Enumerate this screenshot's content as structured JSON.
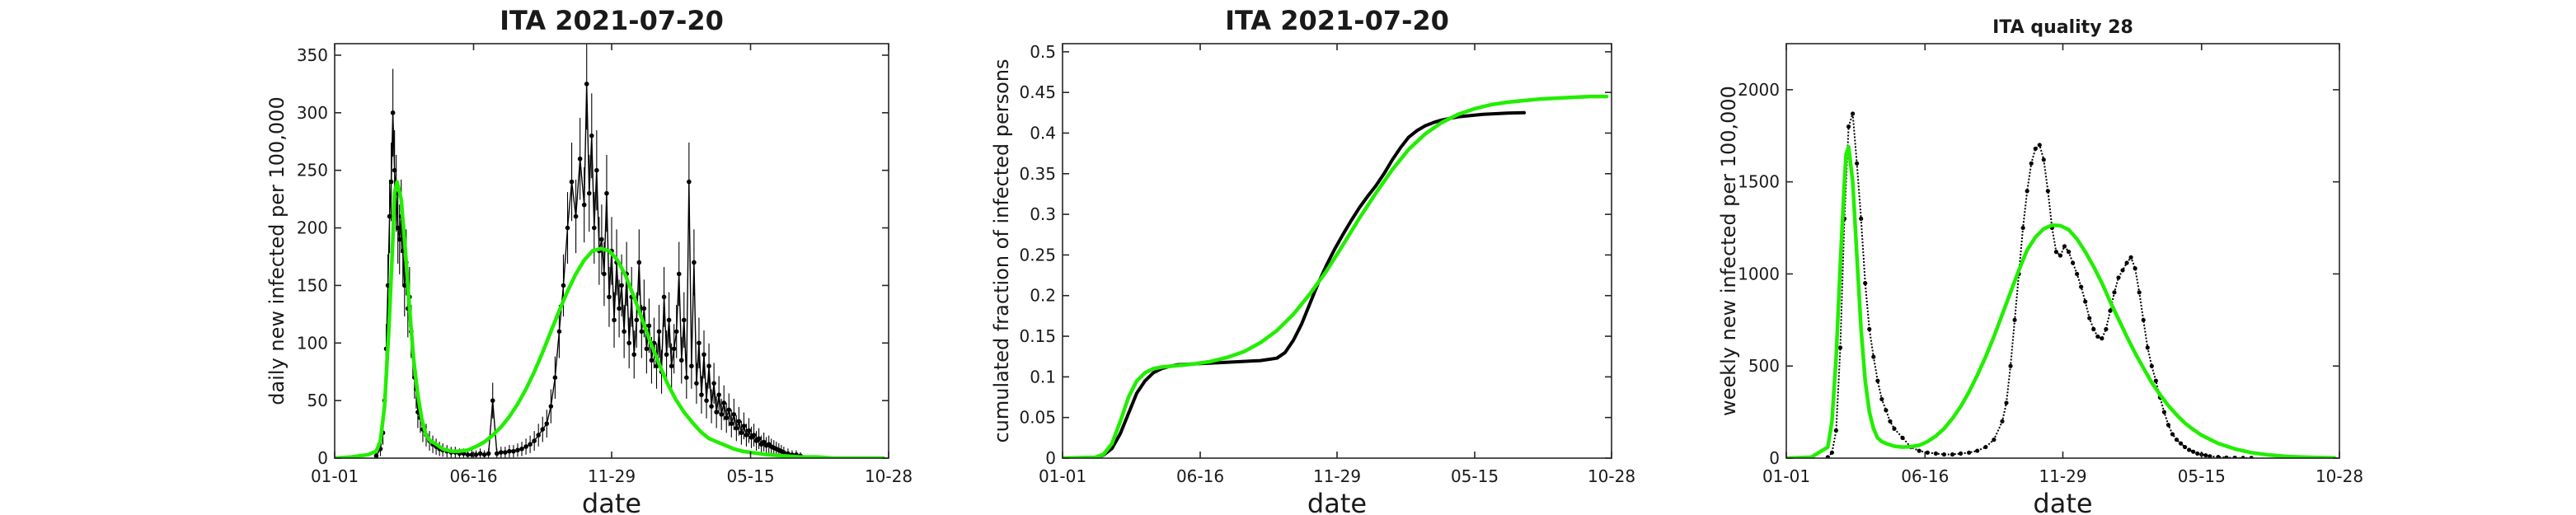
{
  "chart_data": [
    {
      "type": "line",
      "title": "ITA   2021-07-20",
      "xlabel": "date",
      "ylabel": "daily new infected per 100,000",
      "x_ticks": [
        "01-01",
        "06-16",
        "11-29",
        "05-15",
        "10-28"
      ],
      "x_tick_days": [
        0,
        167,
        333,
        500,
        666
      ],
      "ylim": [
        0,
        360
      ],
      "y_ticks": [
        0,
        50,
        100,
        150,
        200,
        250,
        300,
        350
      ],
      "grid": false,
      "series": [
        {
          "color": "#000000",
          "style": "markers+line with error bars",
          "x_days": [
            50,
            55,
            58,
            60,
            62,
            64,
            66,
            68,
            70,
            72,
            74,
            76,
            78,
            80,
            82,
            84,
            86,
            88,
            90,
            92,
            94,
            96,
            98,
            100,
            103,
            106,
            110,
            114,
            118,
            122,
            126,
            130,
            135,
            140,
            145,
            150,
            155,
            160,
            165,
            170,
            175,
            180,
            185,
            190,
            195,
            200,
            205,
            210,
            215,
            220,
            225,
            230,
            235,
            240,
            245,
            250,
            255,
            260,
            265,
            270,
            275,
            280,
            285,
            290,
            295,
            300,
            303,
            306,
            309,
            312,
            315,
            318,
            321,
            324,
            327,
            330,
            333,
            336,
            339,
            342,
            345,
            348,
            351,
            354,
            357,
            360,
            363,
            366,
            369,
            372,
            375,
            378,
            381,
            384,
            387,
            390,
            393,
            396,
            399,
            402,
            405,
            408,
            411,
            414,
            417,
            420,
            423,
            426,
            429,
            432,
            435,
            438,
            441,
            444,
            447,
            450,
            453,
            456,
            459,
            462,
            465,
            468,
            471,
            474,
            477,
            480,
            483,
            486,
            489,
            492,
            495,
            498,
            501,
            504,
            507,
            510,
            513,
            516,
            519,
            522,
            525,
            528,
            531,
            534,
            537,
            540,
            545,
            550,
            555,
            560
          ],
          "y": [
            2,
            8,
            22,
            50,
            95,
            150,
            210,
            240,
            300,
            250,
            230,
            200,
            190,
            210,
            180,
            150,
            170,
            130,
            140,
            110,
            90,
            70,
            60,
            40,
            35,
            25,
            20,
            15,
            12,
            10,
            8,
            7,
            6,
            5,
            5,
            4,
            4,
            3,
            3,
            3,
            4,
            3,
            4,
            50,
            4,
            5,
            5,
            6,
            6,
            7,
            8,
            10,
            12,
            15,
            20,
            25,
            30,
            45,
            70,
            110,
            150,
            200,
            240,
            210,
            260,
            220,
            325,
            230,
            280,
            200,
            250,
            180,
            190,
            160,
            230,
            140,
            180,
            120,
            170,
            130,
            150,
            110,
            160,
            100,
            140,
            90,
            120,
            170,
            110,
            130,
            95,
            115,
            85,
            100,
            80,
            110,
            75,
            140,
            90,
            120,
            80,
            95,
            110,
            160,
            85,
            120,
            70,
            240,
            80,
            170,
            65,
            100,
            55,
            90,
            50,
            80,
            45,
            65,
            40,
            55,
            38,
            48,
            35,
            42,
            30,
            38,
            26,
            32,
            22,
            28,
            20,
            24,
            18,
            20,
            15,
            17,
            12,
            14,
            11,
            12,
            10,
            9,
            8,
            7,
            6,
            5,
            4,
            3,
            3,
            2
          ]
        },
        {
          "color": "#22ee00",
          "style": "line",
          "x_days": [
            0,
            20,
            40,
            50,
            55,
            60,
            65,
            70,
            72,
            75,
            80,
            85,
            90,
            95,
            100,
            105,
            110,
            115,
            120,
            130,
            140,
            150,
            160,
            170,
            180,
            190,
            200,
            210,
            220,
            230,
            240,
            250,
            260,
            270,
            280,
            290,
            300,
            310,
            320,
            330,
            340,
            350,
            360,
            370,
            380,
            390,
            400,
            410,
            420,
            430,
            440,
            450,
            460,
            470,
            480,
            490,
            500,
            520,
            540,
            560,
            580,
            600,
            620,
            640,
            660
          ],
          "y": [
            0,
            1,
            3,
            6,
            15,
            45,
            110,
            190,
            230,
            240,
            225,
            180,
            130,
            85,
            55,
            33,
            20,
            15,
            13,
            8,
            6,
            6,
            7,
            10,
            14,
            20,
            27,
            36,
            47,
            60,
            75,
            92,
            110,
            128,
            145,
            160,
            172,
            180,
            182,
            180,
            172,
            158,
            140,
            120,
            100,
            82,
            65,
            51,
            40,
            31,
            23,
            17,
            14,
            11,
            8,
            6,
            5,
            3,
            2,
            1,
            1,
            0,
            0,
            0,
            0
          ]
        }
      ]
    },
    {
      "type": "line",
      "title": "ITA   2021-07-20",
      "xlabel": "date",
      "ylabel": "cumulated fraction of infected persons",
      "x_ticks": [
        "01-01",
        "06-16",
        "11-29",
        "05-15",
        "10-28"
      ],
      "x_tick_days": [
        0,
        167,
        333,
        500,
        666
      ],
      "ylim": [
        0,
        0.51
      ],
      "y_ticks": [
        0,
        0.05,
        0.1,
        0.15,
        0.2,
        0.25,
        0.3,
        0.35,
        0.4,
        0.45,
        0.5
      ],
      "grid": false,
      "series": [
        {
          "color": "#000000",
          "style": "line",
          "x_days": [
            0,
            40,
            50,
            60,
            70,
            80,
            90,
            100,
            110,
            120,
            130,
            140,
            160,
            180,
            200,
            220,
            240,
            260,
            270,
            280,
            290,
            300,
            310,
            320,
            330,
            340,
            350,
            360,
            370,
            380,
            390,
            400,
            410,
            420,
            430,
            440,
            450,
            460,
            470,
            480,
            490,
            500,
            510,
            520,
            530,
            540,
            550,
            560
          ],
          "y": [
            0,
            0.001,
            0.004,
            0.012,
            0.03,
            0.055,
            0.08,
            0.095,
            0.105,
            0.11,
            0.113,
            0.115,
            0.116,
            0.117,
            0.118,
            0.119,
            0.12,
            0.123,
            0.13,
            0.145,
            0.165,
            0.19,
            0.215,
            0.237,
            0.257,
            0.275,
            0.292,
            0.308,
            0.322,
            0.335,
            0.35,
            0.367,
            0.382,
            0.395,
            0.403,
            0.409,
            0.413,
            0.416,
            0.418,
            0.42,
            0.421,
            0.422,
            0.423,
            0.4235,
            0.424,
            0.4245,
            0.4248,
            0.425
          ]
        },
        {
          "color": "#22ee00",
          "style": "line",
          "x_days": [
            0,
            40,
            50,
            60,
            70,
            80,
            90,
            100,
            110,
            120,
            140,
            160,
            180,
            200,
            220,
            240,
            260,
            280,
            300,
            320,
            340,
            360,
            380,
            400,
            420,
            440,
            460,
            480,
            500,
            520,
            540,
            560,
            580,
            600,
            620,
            640,
            660
          ],
          "y": [
            0,
            0.001,
            0.005,
            0.018,
            0.045,
            0.075,
            0.095,
            0.105,
            0.11,
            0.112,
            0.114,
            0.116,
            0.119,
            0.124,
            0.131,
            0.142,
            0.157,
            0.177,
            0.202,
            0.23,
            0.262,
            0.295,
            0.326,
            0.355,
            0.38,
            0.399,
            0.413,
            0.423,
            0.43,
            0.435,
            0.438,
            0.44,
            0.442,
            0.443,
            0.444,
            0.445,
            0.445
          ]
        }
      ]
    },
    {
      "type": "line",
      "title": "ITA  quality 28",
      "xlabel": "date",
      "ylabel": "weekly new infected per 100,000",
      "x_ticks": [
        "01-01",
        "06-16",
        "11-29",
        "05-15",
        "10-28"
      ],
      "x_tick_days": [
        0,
        167,
        333,
        500,
        666
      ],
      "ylim": [
        0,
        2250
      ],
      "y_ticks": [
        0,
        500,
        1000,
        1500,
        2000
      ],
      "grid": false,
      "series": [
        {
          "color": "#000000",
          "style": "dotted markers",
          "x_days": [
            50,
            55,
            60,
            65,
            70,
            75,
            80,
            85,
            90,
            95,
            100,
            105,
            110,
            115,
            120,
            125,
            130,
            140,
            150,
            160,
            170,
            180,
            190,
            200,
            210,
            220,
            230,
            240,
            250,
            260,
            265,
            270,
            275,
            280,
            285,
            290,
            295,
            300,
            305,
            310,
            315,
            320,
            325,
            330,
            335,
            340,
            345,
            350,
            355,
            360,
            365,
            370,
            375,
            380,
            385,
            390,
            395,
            400,
            405,
            410,
            415,
            420,
            425,
            430,
            435,
            440,
            445,
            450,
            455,
            460,
            465,
            470,
            475,
            480,
            485,
            490,
            495,
            500,
            505,
            510,
            520,
            530,
            540,
            550,
            560
          ],
          "y": [
            5,
            30,
            150,
            600,
            1300,
            1800,
            1870,
            1600,
            1300,
            950,
            700,
            550,
            420,
            320,
            260,
            200,
            160,
            110,
            60,
            40,
            30,
            25,
            20,
            20,
            25,
            30,
            40,
            60,
            100,
            200,
            300,
            500,
            750,
            1000,
            1250,
            1450,
            1600,
            1680,
            1700,
            1620,
            1450,
            1250,
            1120,
            1100,
            1150,
            1120,
            1060,
            1000,
            930,
            850,
            760,
            700,
            660,
            650,
            700,
            800,
            900,
            980,
            1020,
            1060,
            1090,
            1030,
            900,
            750,
            600,
            500,
            420,
            330,
            250,
            180,
            130,
            100,
            80,
            60,
            45,
            35,
            25,
            20,
            15,
            10,
            6,
            3,
            2,
            1,
            1
          ]
        },
        {
          "color": "#22ee00",
          "style": "line",
          "x_days": [
            0,
            30,
            50,
            55,
            60,
            65,
            70,
            72,
            75,
            80,
            85,
            90,
            95,
            100,
            105,
            110,
            115,
            120,
            130,
            140,
            150,
            160,
            170,
            180,
            190,
            200,
            210,
            220,
            230,
            240,
            250,
            260,
            270,
            280,
            290,
            300,
            310,
            320,
            330,
            340,
            350,
            360,
            370,
            380,
            390,
            400,
            410,
            420,
            430,
            440,
            450,
            460,
            470,
            480,
            490,
            500,
            520,
            540,
            560,
            580,
            600,
            620,
            640,
            660
          ],
          "y": [
            0,
            5,
            60,
            200,
            550,
            1050,
            1500,
            1650,
            1690,
            1500,
            1100,
            700,
            420,
            250,
            160,
            110,
            90,
            80,
            65,
            60,
            62,
            70,
            90,
            120,
            160,
            215,
            280,
            360,
            450,
            550,
            660,
            780,
            900,
            1020,
            1130,
            1200,
            1245,
            1265,
            1262,
            1240,
            1190,
            1120,
            1040,
            950,
            850,
            755,
            660,
            570,
            490,
            410,
            345,
            285,
            235,
            190,
            155,
            125,
            80,
            50,
            30,
            18,
            10,
            6,
            3,
            2
          ]
        }
      ]
    }
  ]
}
